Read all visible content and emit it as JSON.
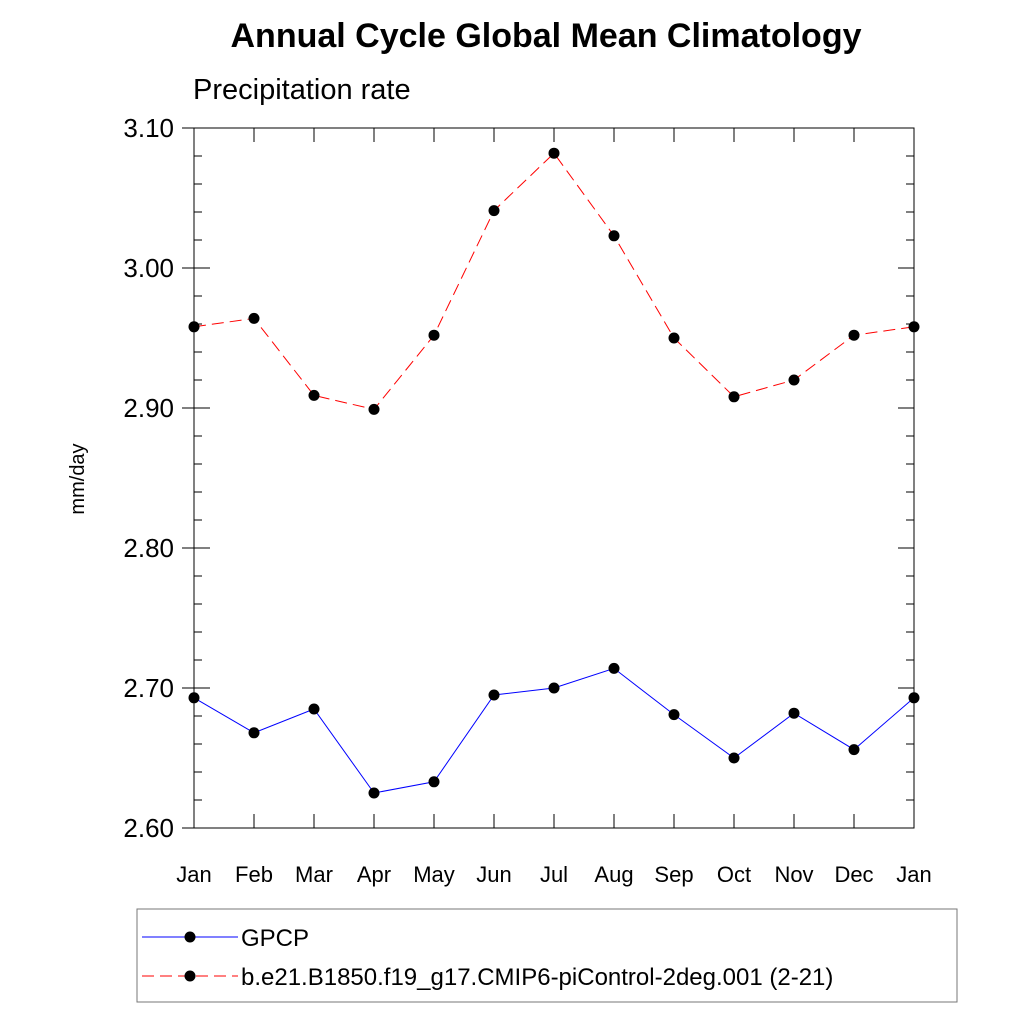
{
  "chart_data": {
    "type": "line",
    "title": "Annual Cycle Global Mean Climatology",
    "subtitle": "Precipitation rate",
    "xlabel": "",
    "ylabel": "mm/day",
    "categories": [
      "Jan",
      "Feb",
      "Mar",
      "Apr",
      "May",
      "Jun",
      "Jul",
      "Aug",
      "Sep",
      "Oct",
      "Nov",
      "Dec",
      "Jan"
    ],
    "ylim": [
      2.6,
      3.1
    ],
    "yticks": [
      "2.60",
      "2.70",
      "2.80",
      "2.90",
      "3.00",
      "3.10"
    ],
    "series": [
      {
        "name": "GPCP",
        "color": "#0000ff",
        "line_style": "solid",
        "values": [
          2.693,
          2.668,
          2.685,
          2.625,
          2.633,
          2.695,
          2.7,
          2.714,
          2.681,
          2.65,
          2.682,
          2.656,
          2.693
        ]
      },
      {
        "name": "b.e21.B1850.f19_g17.CMIP6-piControl-2deg.001 (2-21)",
        "color": "#ff0000",
        "line_style": "dashed",
        "values": [
          2.958,
          2.964,
          2.909,
          2.899,
          2.952,
          3.041,
          3.082,
          3.023,
          2.95,
          2.908,
          2.92,
          2.952,
          2.958
        ]
      }
    ],
    "grid": false,
    "legend_position": "bottom"
  }
}
